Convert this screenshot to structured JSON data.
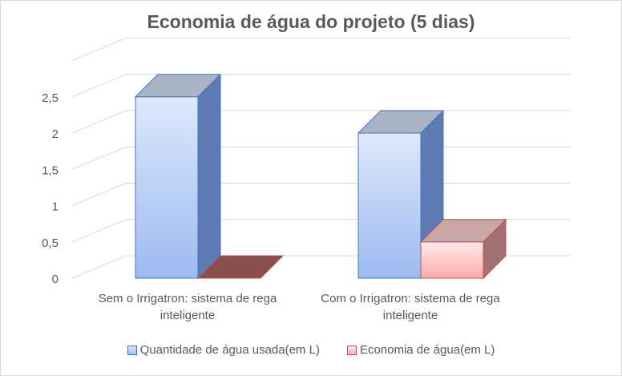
{
  "chart_data": {
    "type": "bar",
    "title": "Economia de água do projeto (5 dias)",
    "categories": [
      [
        "Sem o Irrigatron: sistema de rega",
        "inteligente"
      ],
      [
        "Com o Irrigatron: sistema de rega",
        "inteligente"
      ]
    ],
    "series": [
      {
        "name": "Quantidade de água usada(em L)",
        "values": [
          2.5,
          2.0
        ],
        "color_front_top": "#dde8fb",
        "color_front_bottom": "#9dbbf2",
        "color_side": "#5e7ab2",
        "color_top": "#a9b3c6",
        "color_edge": "#4472c4"
      },
      {
        "name": "Economia de água(em L)",
        "values": [
          0,
          0.5
        ],
        "color_front_top": "#ffeaea",
        "color_front_bottom": "#ffaaaa",
        "color_side": "#a27272",
        "color_top": "#c9a7a7",
        "color_edge": "#c0504d"
      }
    ],
    "yticks": [
      "0",
      "0,5",
      "1",
      "1,5",
      "2",
      "2,5"
    ],
    "ylim": [
      0,
      3
    ],
    "grid": true,
    "legend": "bottom"
  }
}
